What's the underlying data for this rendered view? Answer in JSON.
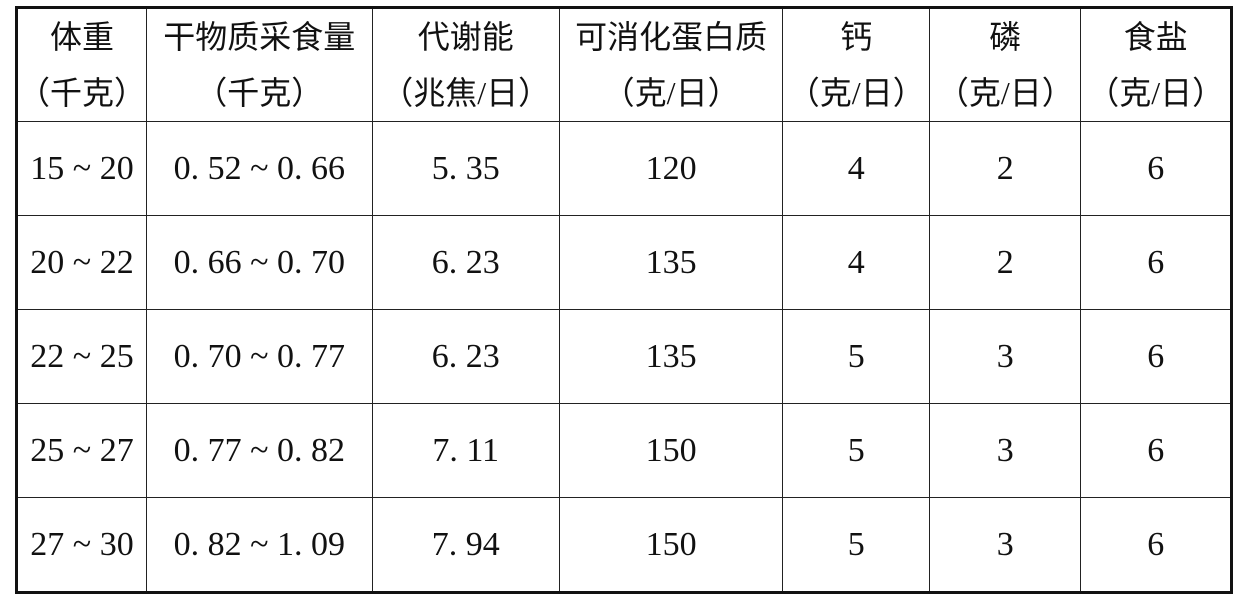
{
  "table": {
    "headers": [
      {
        "name": "体重",
        "unit": "（千克）"
      },
      {
        "name": "干物质采食量",
        "unit": "（千克）"
      },
      {
        "name": "代谢能",
        "unit": "（兆焦/日）"
      },
      {
        "name": "可消化蛋白质",
        "unit": "（克/日）"
      },
      {
        "name": "钙",
        "unit": "（克/日）"
      },
      {
        "name": "磷",
        "unit": "（克/日）"
      },
      {
        "name": "食盐",
        "unit": "（克/日）"
      }
    ],
    "rows": [
      [
        "15 ~ 20",
        "0. 52 ~ 0. 66",
        "5. 35",
        "120",
        "4",
        "2",
        "6"
      ],
      [
        "20 ~ 22",
        "0. 66 ~ 0. 70",
        "6. 23",
        "135",
        "4",
        "2",
        "6"
      ],
      [
        "22 ~ 25",
        "0. 70 ~ 0. 77",
        "6. 23",
        "135",
        "5",
        "3",
        "6"
      ],
      [
        "25 ~ 27",
        "0. 77 ~ 0. 82",
        "7. 11",
        "150",
        "5",
        "3",
        "6"
      ],
      [
        "27 ~ 30",
        "0. 82 ~ 1. 09",
        "7. 94",
        "150",
        "5",
        "3",
        "6"
      ]
    ]
  }
}
